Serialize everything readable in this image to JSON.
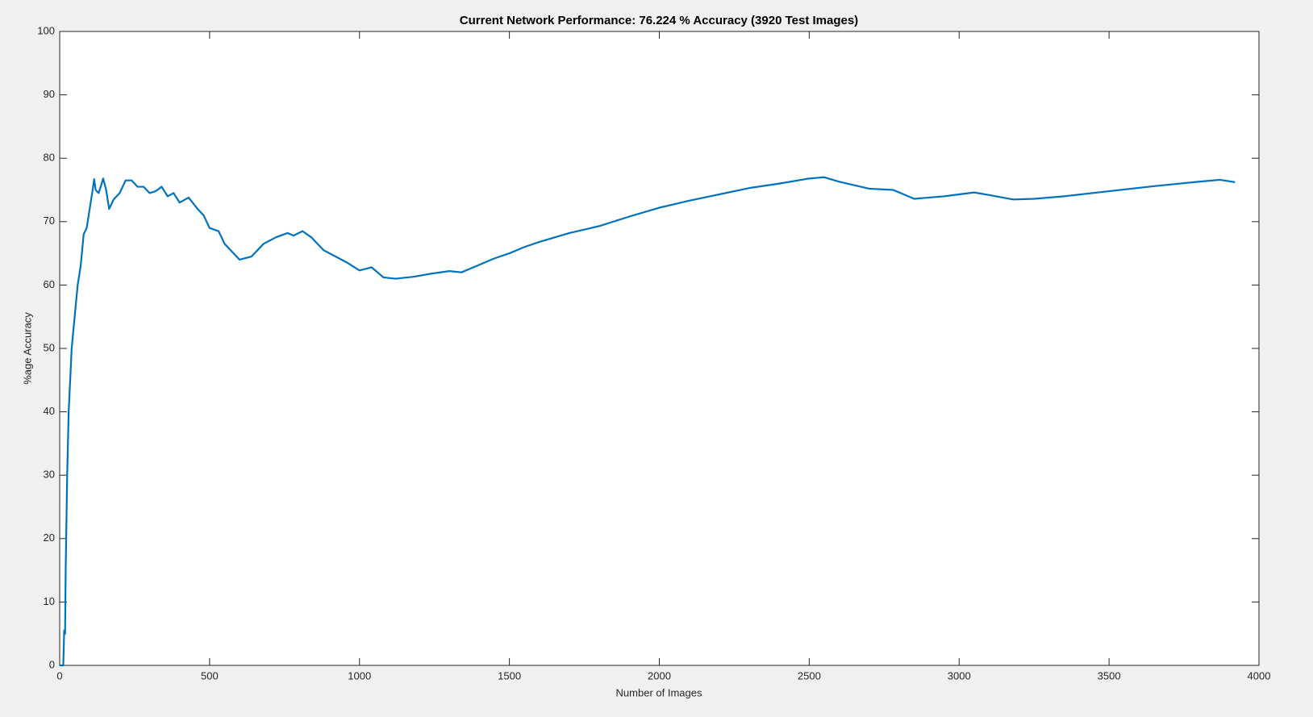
{
  "chart_data": {
    "type": "line",
    "title": "Current Network Performance: 76.224 % Accuracy (3920 Test Images)",
    "x_label": "Number of Images",
    "y_label": "%age Accuracy",
    "x": [
      0,
      12,
      15,
      18,
      20,
      25,
      30,
      40,
      50,
      60,
      70,
      80,
      90,
      100,
      110,
      115,
      120,
      130,
      140,
      145,
      155,
      165,
      180,
      200,
      220,
      240,
      250,
      260,
      280,
      300,
      320,
      340,
      360,
      380,
      400,
      430,
      460,
      480,
      500,
      530,
      550,
      580,
      600,
      640,
      680,
      720,
      760,
      780,
      810,
      840,
      880,
      920,
      960,
      1000,
      1040,
      1080,
      1120,
      1180,
      1240,
      1300,
      1340,
      1400,
      1450,
      1500,
      1550,
      1600,
      1650,
      1700,
      1800,
      1900,
      2000,
      2100,
      2200,
      2300,
      2400,
      2500,
      2550,
      2600,
      2700,
      2780,
      2850,
      2950,
      3050,
      3100,
      3180,
      3250,
      3350,
      3500,
      3650,
      3800,
      3870,
      3920
    ],
    "series": [
      {
        "name": "accuracy",
        "color": "#0072bd",
        "values": [
          0,
          0,
          5.5,
          5,
          15,
          30,
          40,
          50,
          55,
          60,
          63,
          68,
          69,
          72,
          75,
          76.7,
          75,
          74.5,
          76,
          76.8,
          75,
          72,
          73.5,
          74.5,
          76.5,
          76.5,
          76,
          75.5,
          75.5,
          74.5,
          74.8,
          75.5,
          74,
          74.5,
          73,
          73.8,
          72,
          71,
          69,
          68.5,
          66.5,
          65,
          64,
          64.5,
          66.5,
          67.5,
          68.2,
          67.8,
          68.5,
          67.5,
          65.5,
          64.5,
          63.5,
          62.3,
          62.8,
          61.2,
          61,
          61.3,
          61.8,
          62.2,
          62,
          63.2,
          64.2,
          65,
          66,
          66.8,
          67.5,
          68.2,
          69.3,
          70.8,
          72.2,
          73.3,
          74.3,
          75.3,
          76,
          76.8,
          77,
          76.3,
          75.2,
          75,
          73.6,
          74,
          74.6,
          74.2,
          73.5,
          73.6,
          74,
          74.8,
          75.6,
          76.3,
          76.6,
          76.224
        ]
      }
    ],
    "xlim": [
      0,
      4000
    ],
    "xticks": [
      0,
      500,
      1000,
      1500,
      2000,
      2500,
      3000,
      3500,
      4000
    ],
    "ylim": [
      0,
      100
    ],
    "yticks": [
      0,
      10,
      20,
      30,
      40,
      50,
      60,
      70,
      80,
      90,
      100
    ]
  }
}
